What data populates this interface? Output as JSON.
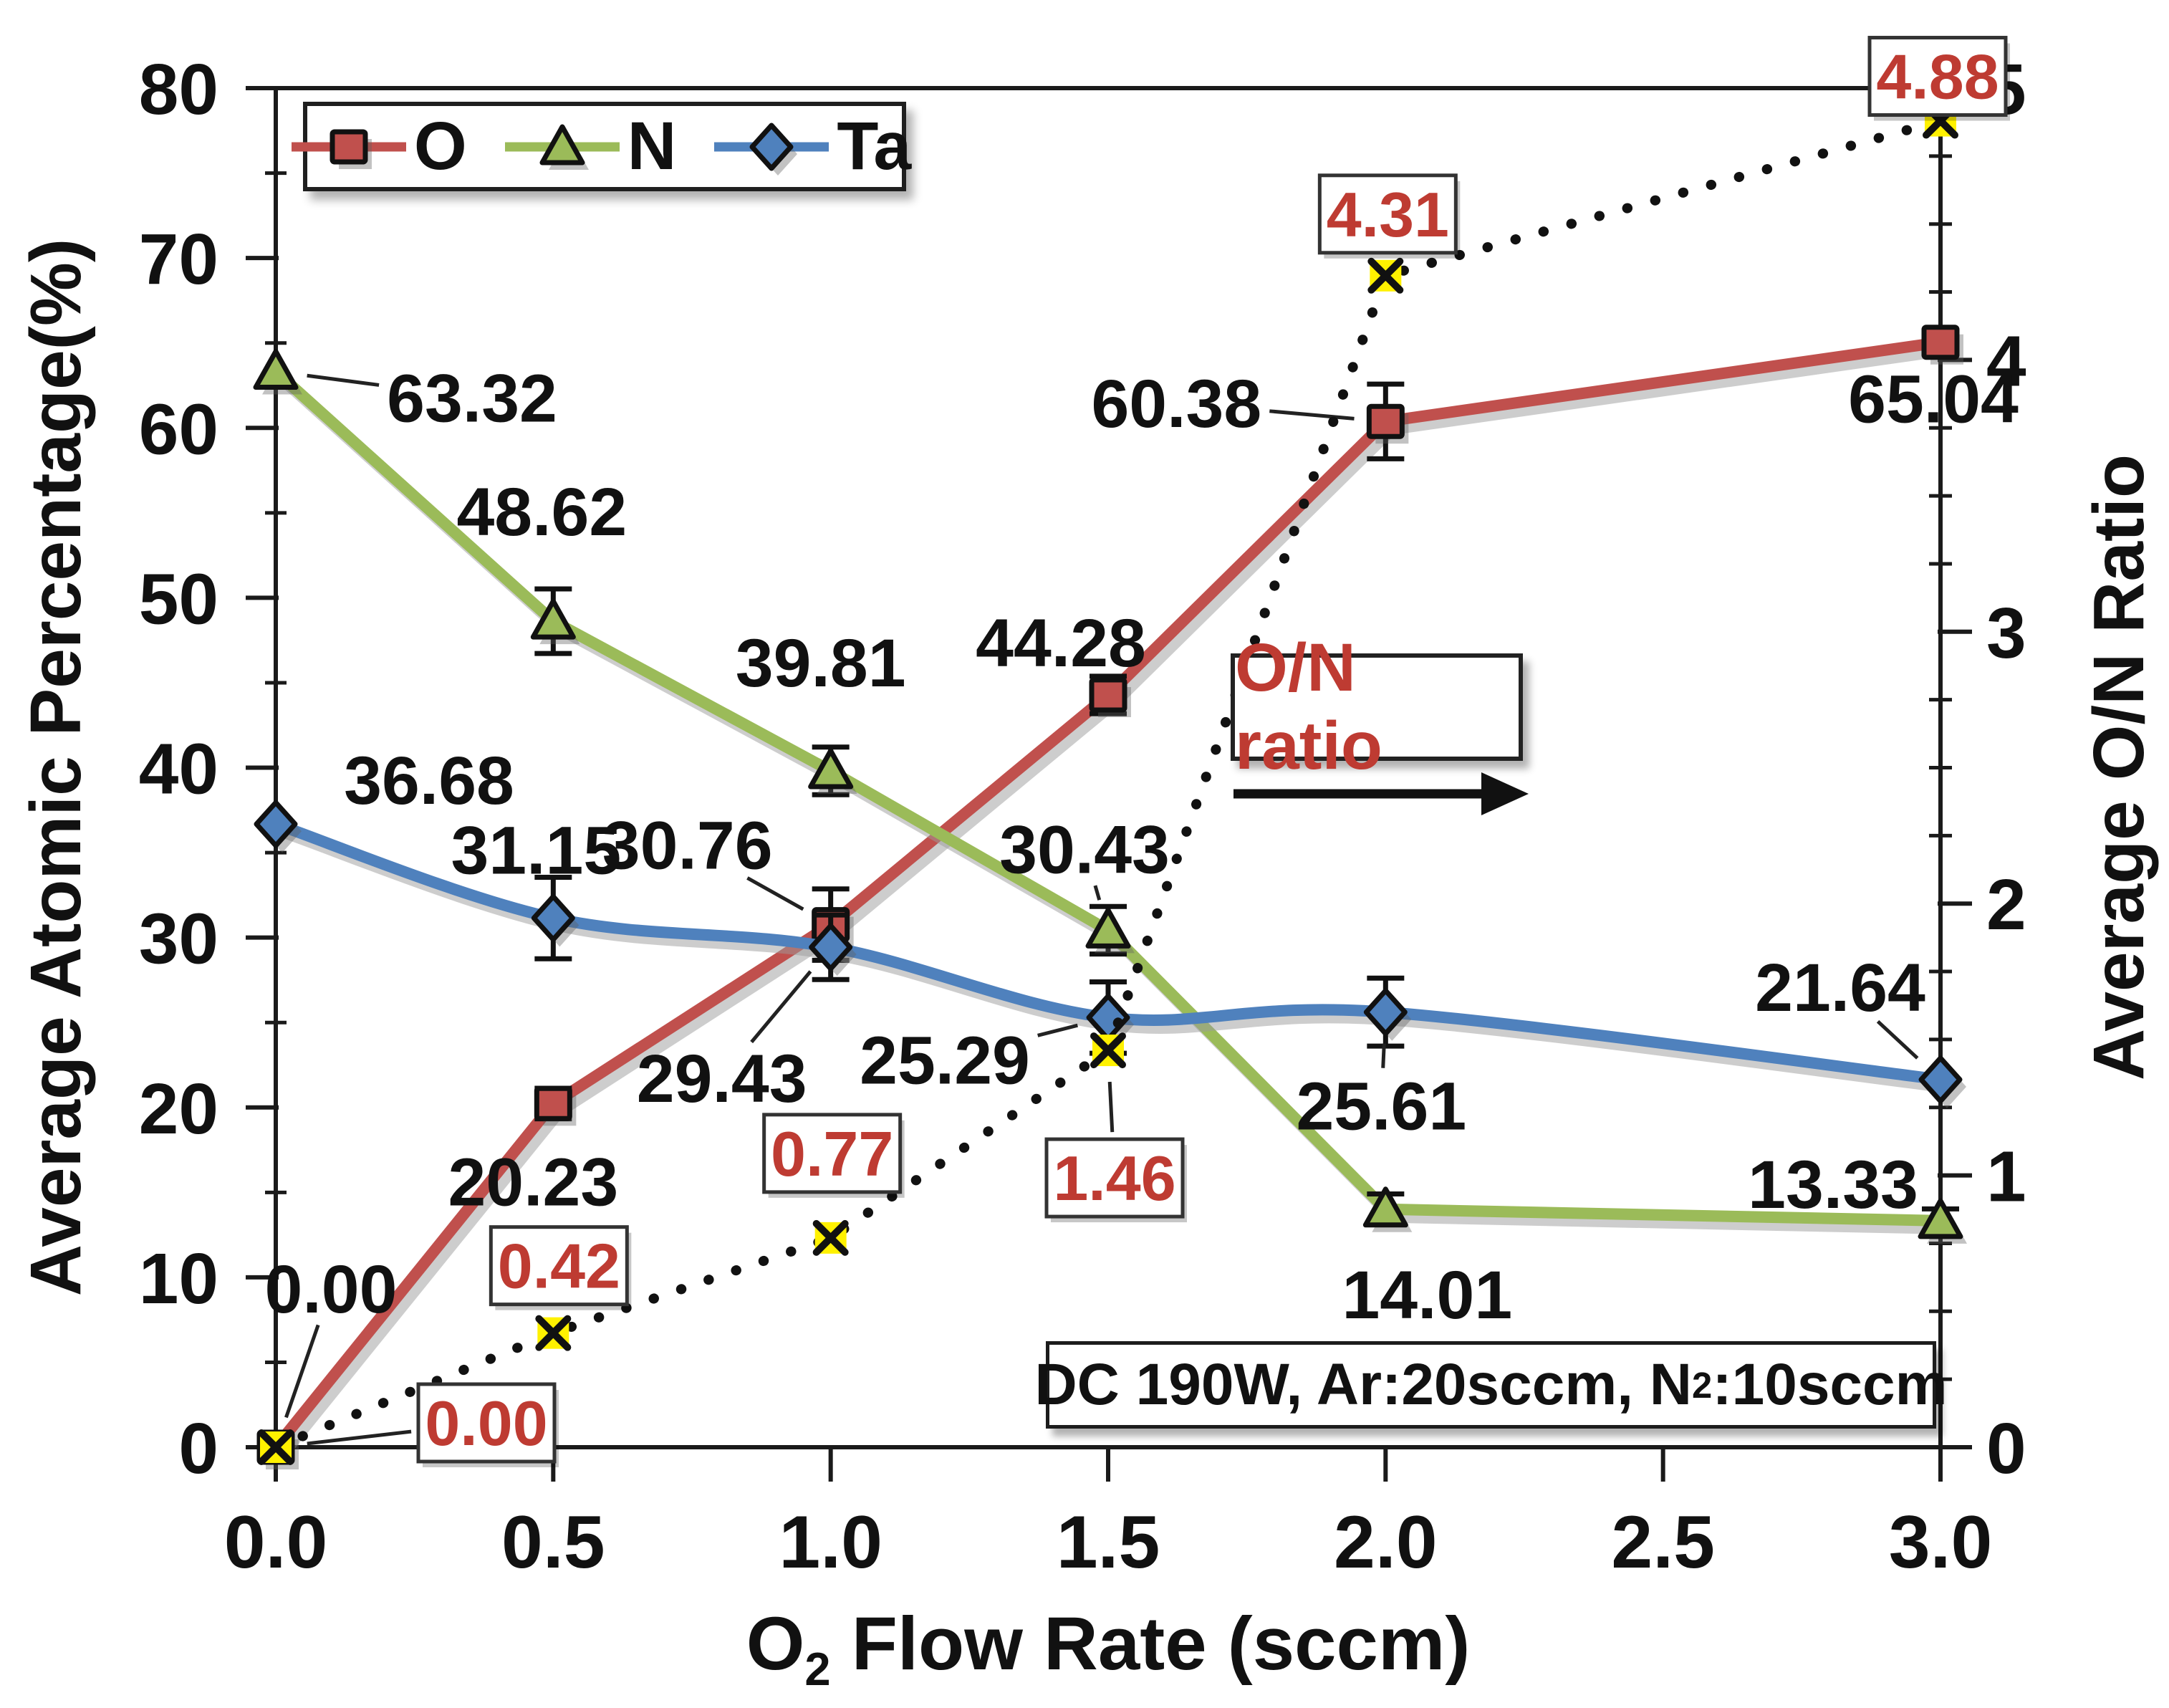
{
  "chart_data": {
    "type": "line",
    "xmin": 0,
    "xmax": 3,
    "x": [
      0,
      0.5,
      1.0,
      1.5,
      2.0,
      3.0
    ],
    "x_axis": {
      "title_prefix": "O",
      "title_sub": "2",
      "title_suffix": " Flow Rate (sccm)",
      "tick_values": [
        0,
        0.5,
        1.0,
        1.5,
        2.0,
        2.5,
        3.0
      ],
      "ticks": [
        "0.0",
        "0.5",
        "1.0",
        "1.5",
        "2.0",
        "2.5",
        "3.0"
      ]
    },
    "left_axis": {
      "title": "Average Atomic Percentage(%)",
      "min": 0,
      "max": 80,
      "minor_step": 5,
      "tick_values": [
        0,
        10,
        20,
        30,
        40,
        50,
        60,
        70,
        80
      ],
      "ticks": [
        "0",
        "10",
        "20",
        "30",
        "40",
        "50",
        "60",
        "70",
        "80"
      ]
    },
    "right_axis": {
      "title": "Average O/N Ratio",
      "min": 0,
      "max": 5,
      "minor_step": 0.25,
      "tick_values": [
        0,
        1,
        2,
        3,
        4,
        5
      ],
      "ticks": [
        "0",
        "1",
        "2",
        "3",
        "4",
        "5"
      ]
    },
    "grid": false,
    "legend_position": "top-left",
    "series": [
      {
        "name": "O",
        "color": "#C0504D",
        "marker": "square",
        "axis": "left",
        "style": "solid",
        "smooth": false,
        "in_legend": true,
        "values": [
          0.0,
          20.23,
          30.76,
          44.28,
          60.38,
          65.04
        ],
        "err": [
          0,
          0.9,
          2.1,
          1.1,
          2.2,
          0
        ],
        "labels": [
          {
            "text": "0.00",
            "dx": 77,
            "dy": -222,
            "leader": true
          },
          {
            "text": "20.23",
            "dx": -28,
            "dy": 108,
            "leader": false
          },
          {
            "text": "30.76",
            "dx": -200,
            "dy": -112,
            "leader": true
          },
          {
            "text": "44.28",
            "dx": -66,
            "dy": -74,
            "leader": false
          },
          {
            "text": "60.38",
            "dx": -292,
            "dy": -26,
            "leader": true
          },
          {
            "text": "65.04",
            "dx": -10,
            "dy": 78,
            "leader": false
          }
        ]
      },
      {
        "name": "N",
        "color": "#9BBB59",
        "marker": "triangle",
        "axis": "left",
        "style": "solid",
        "smooth": false,
        "in_legend": true,
        "values": [
          63.32,
          48.62,
          39.81,
          30.43,
          14.01,
          13.33
        ],
        "err": [
          0,
          1.9,
          1.4,
          1.4,
          0.9,
          0.7
        ],
        "labels": [
          {
            "text": "63.32",
            "dx": 274,
            "dy": 36,
            "leader": true
          },
          {
            "text": "48.62",
            "dx": -16,
            "dy": -154,
            "leader": false
          },
          {
            "text": "39.81",
            "dx": -14,
            "dy": -152,
            "leader": false
          },
          {
            "text": "30.43",
            "dx": -33,
            "dy": -114,
            "leader": true
          },
          {
            "text": "14.01",
            "dx": 58,
            "dy": 118,
            "leader": false
          },
          {
            "text": "13.33",
            "dx": -150,
            "dy": -52,
            "leader": true
          }
        ]
      },
      {
        "name": "Ta",
        "color": "#4F81BD",
        "marker": "diamond",
        "axis": "left",
        "style": "solid",
        "smooth": true,
        "in_legend": true,
        "values": [
          36.68,
          31.15,
          29.43,
          25.29,
          25.61,
          21.64
        ],
        "err": [
          0,
          2.4,
          1.9,
          2.1,
          2.0,
          0
        ],
        "labels": [
          {
            "text": "36.68",
            "dx": 214,
            "dy": -62,
            "leader": false
          },
          {
            "text": "31.15",
            "dx": -24,
            "dy": -96,
            "leader": false
          },
          {
            "text": "29.43",
            "dx": -152,
            "dy": 182,
            "leader": true
          },
          {
            "text": "25.29",
            "dx": -228,
            "dy": 58,
            "leader": true
          },
          {
            "text": "25.61",
            "dx": -6,
            "dy": 130,
            "leader": true
          },
          {
            "text": "21.64",
            "dx": -140,
            "dy": -130,
            "leader": true
          }
        ]
      },
      {
        "name": "O/N ratio",
        "color": "#111111",
        "marker": "x-yellow",
        "axis": "right",
        "style": "dotted",
        "smooth": false,
        "in_legend": false,
        "marker_fill": "#FFF100",
        "values": [
          0.0,
          0.42,
          0.77,
          1.46,
          4.31,
          4.88
        ],
        "err": [
          0,
          0,
          0,
          0,
          0,
          0
        ],
        "labels": [
          {
            "text": "0.00",
            "dx": 294,
            "dy": -34,
            "leader": true,
            "boxed": true
          },
          {
            "text": "0.42",
            "dx": 8,
            "dy": -94,
            "leader": false,
            "boxed": true
          },
          {
            "text": "0.77",
            "dx": 2,
            "dy": -118,
            "leader": false,
            "boxed": true
          },
          {
            "text": "1.46",
            "dx": 9,
            "dy": 178,
            "leader": true,
            "boxed": true
          },
          {
            "text": "4.31",
            "dx": 3,
            "dy": -86,
            "leader": false,
            "boxed": true
          },
          {
            "text": "4.88",
            "dx": -4,
            "dy": -62,
            "leader": false,
            "boxed": true
          }
        ]
      }
    ],
    "annotations": {
      "ratio_pointer": {
        "text": "O/N ratio",
        "color": "#BE3B32"
      },
      "condition": {
        "prefix": "DC 190W, Ar:20sccm, N",
        "sub": "2",
        "suffix": ":10sccm"
      },
      "ratio_label_color": "#BE3B32"
    }
  }
}
